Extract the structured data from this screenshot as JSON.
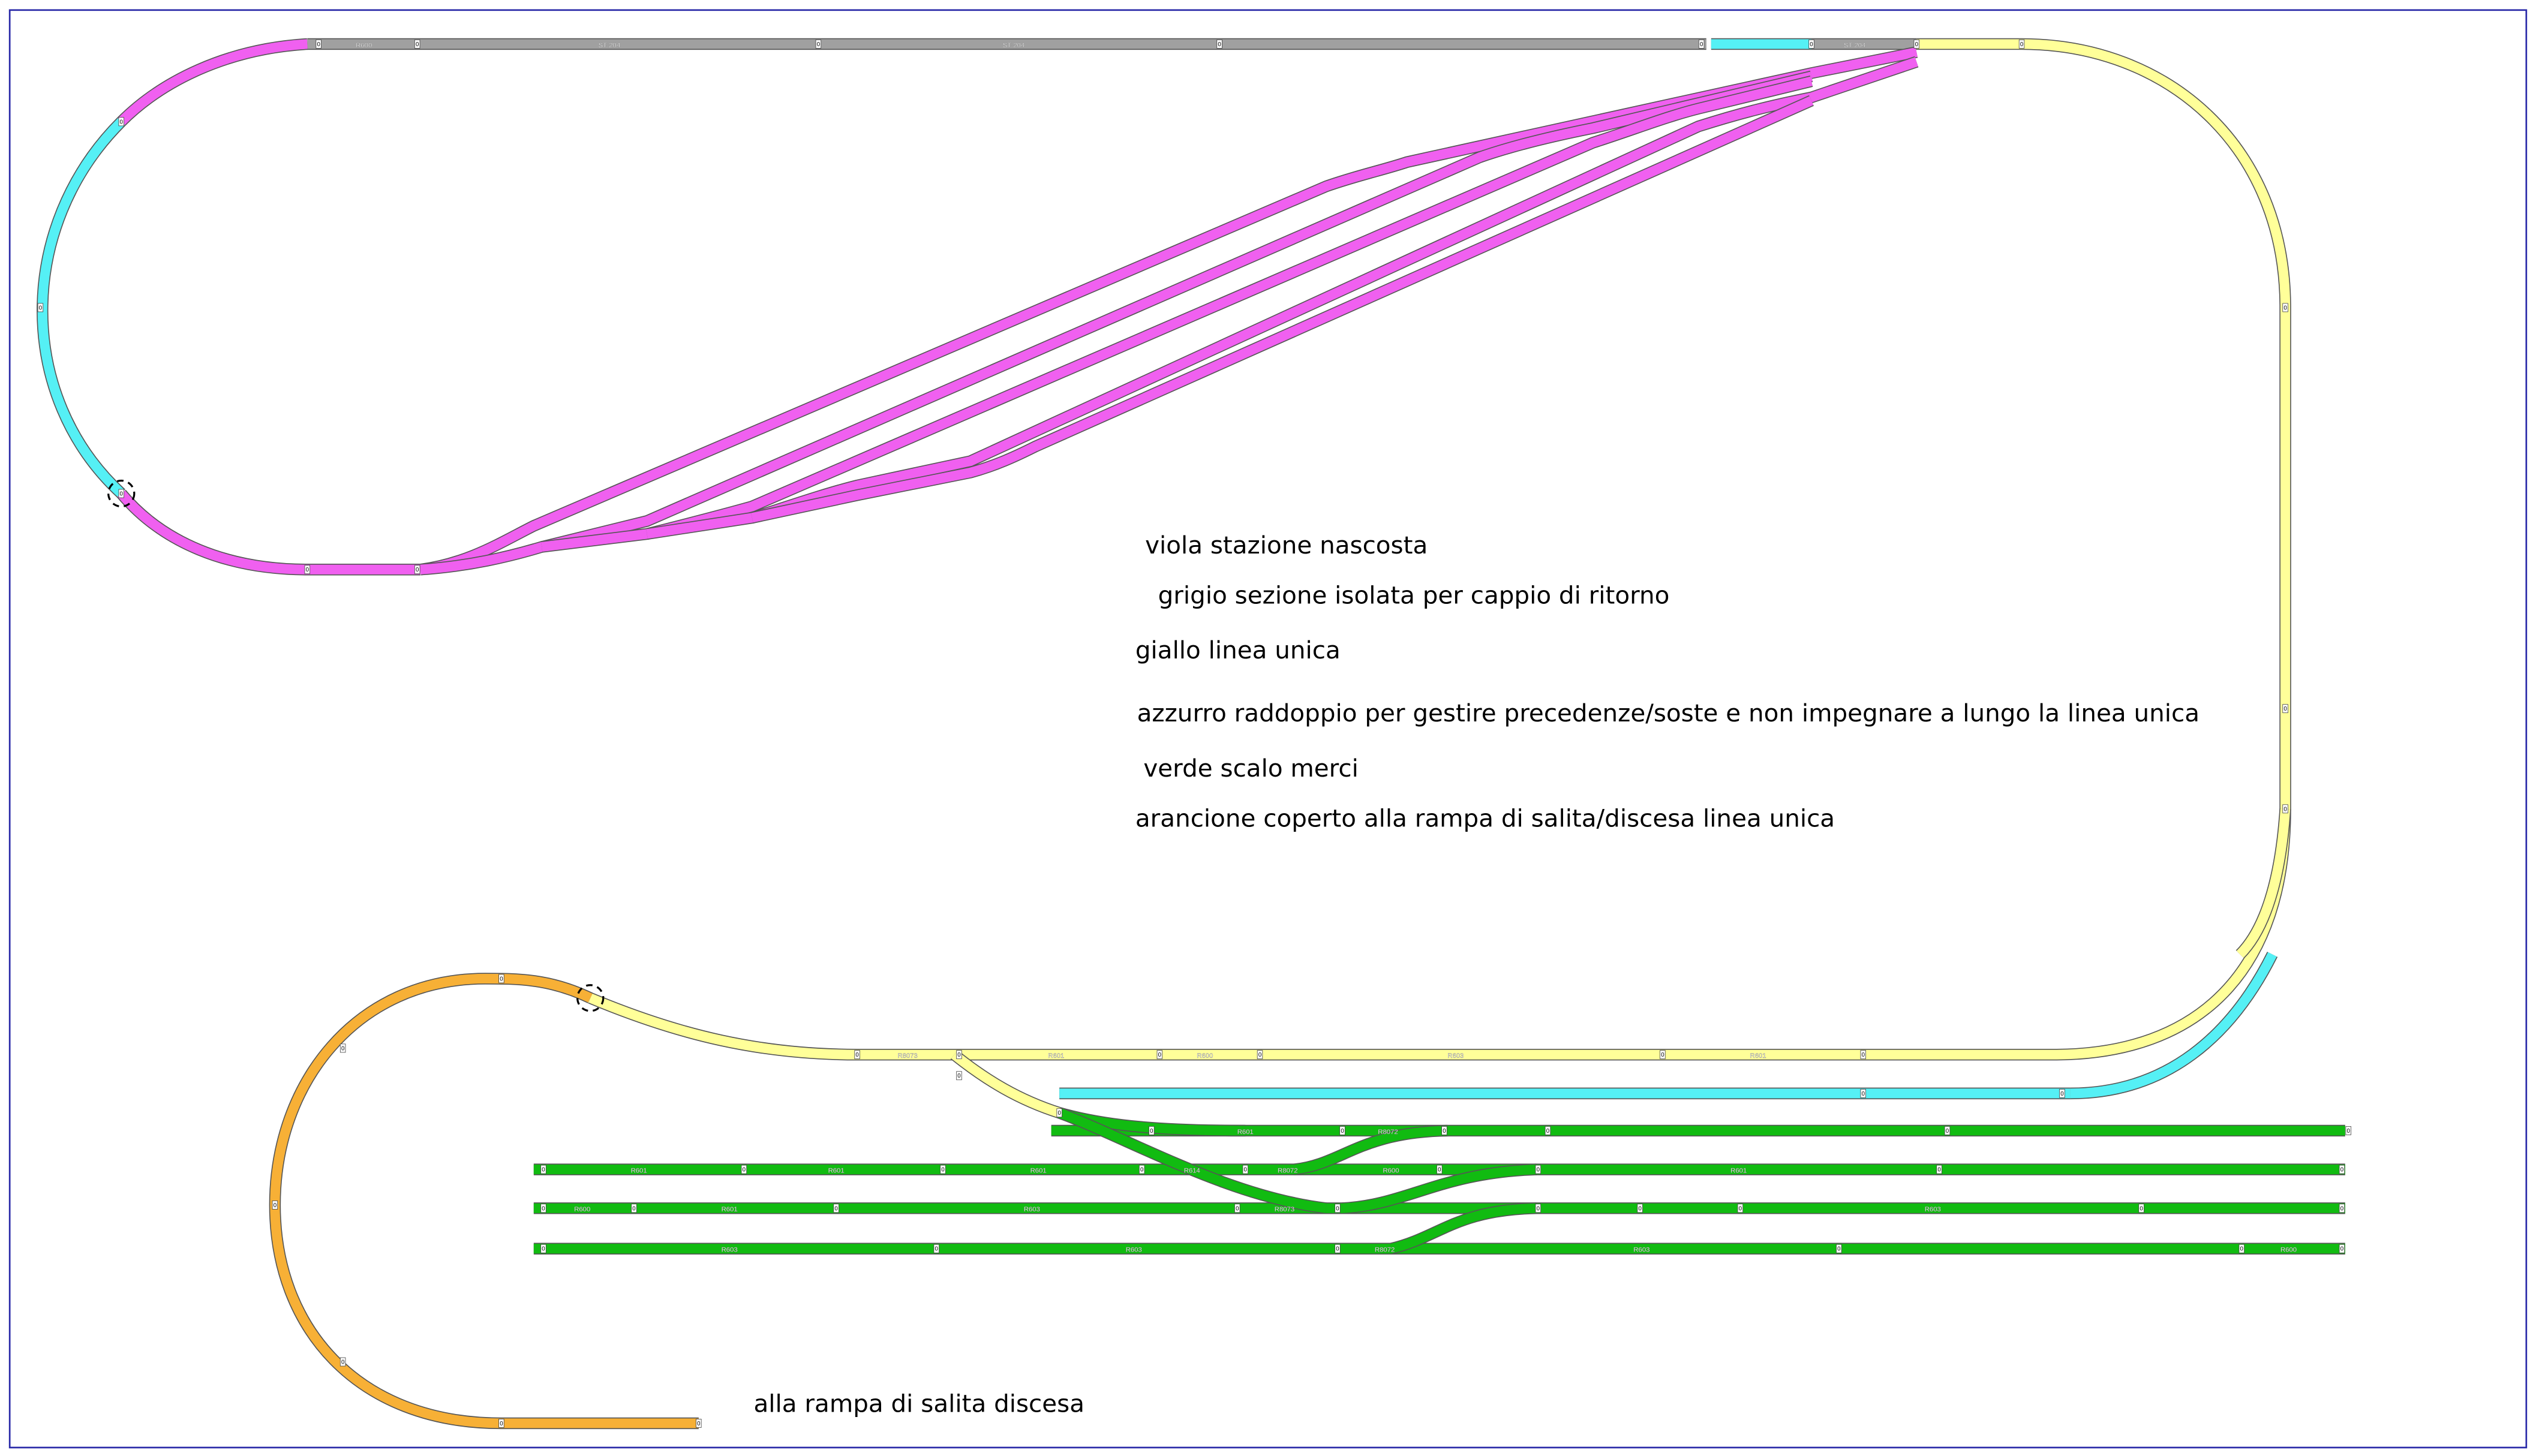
{
  "legend": {
    "viola": "viola  stazione nascosta",
    "grigio": "grigio   sezione isolata per cappio di ritorno",
    "giallo": "giallo linea unica",
    "azzurro": "azzurro raddoppio per gestire precedenze/soste e non impegnare a lungo la linea unica",
    "verde": "verde   scalo  merci",
    "arancione": "arancione coperto alla rampa di salita/discesa linea unica"
  },
  "note": "alla rampa di salita discesa",
  "track_labels": {
    "r600": "R600",
    "st204": "ST-204",
    "r601": "R601",
    "r603": "R603",
    "r8072": "R8072",
    "r8073": "R8073",
    "r614": "R614"
  },
  "joint_label": "0",
  "colors": {
    "viola": "#f060f0",
    "grigio": "#a0a0a0",
    "giallo": "#ffff99",
    "azzurro": "#55f0f5",
    "verde": "#11bb11",
    "arancione": "#f7b036",
    "frame": "#2a2aa8"
  }
}
